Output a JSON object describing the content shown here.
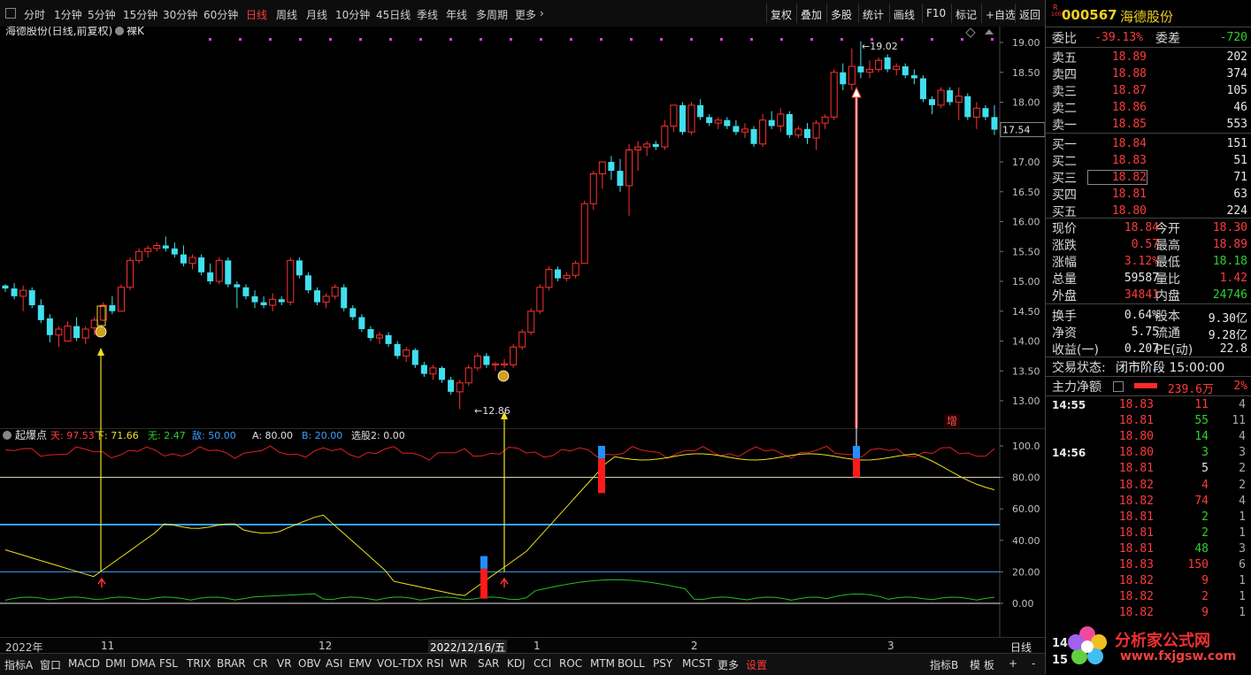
{
  "toolbar": {
    "periods": [
      "分时",
      "1分钟",
      "5分钟",
      "15分钟",
      "30分钟",
      "60分钟",
      "日线",
      "周线",
      "月线",
      "10分钟",
      "45日线",
      "季线",
      "年线",
      "多周期",
      "更多"
    ],
    "active_period": "日线",
    "buttons": [
      "复权",
      "叠加",
      "多股",
      "统计",
      "画线",
      "F10",
      "标记",
      "+自选",
      "返回"
    ]
  },
  "chart": {
    "title": "海德股份(日线,前复权)",
    "mode": "裸K",
    "price_ticks": [
      "19.00",
      "18.50",
      "18.00",
      "17.50",
      "17.00",
      "16.50",
      "16.00",
      "15.50",
      "15.00",
      "14.50",
      "14.00",
      "13.50",
      "13.00"
    ],
    "current_price_tag": "17.54",
    "high_label": "19.02",
    "low_label": "12.86",
    "zeng_label": "增"
  },
  "indicator": {
    "name": "起爆点",
    "items": [
      {
        "label": "天: 97.53",
        "color": "#ff3b3b"
      },
      {
        "label": "下: 71.66",
        "color": "#f0e020"
      },
      {
        "label": "无: 2.47",
        "color": "#2ed12e"
      },
      {
        "label": "敌: 50.00",
        "color": "#3aa0ff"
      },
      {
        "label": "A: 80.00",
        "color": "#e0e0e0"
      },
      {
        "label": "B: 20.00",
        "color": "#3aa0ff"
      },
      {
        "label": "选股2: 0.00",
        "color": "#e0e0e0"
      }
    ],
    "ticks": [
      "100.0",
      "80.00",
      "60.00",
      "40.00",
      "20.00",
      "0.00"
    ]
  },
  "date_axis": {
    "labels": [
      "2022年",
      "11",
      "12",
      "2022/12/16/五",
      "1",
      "2",
      "3"
    ],
    "right_label": "日线"
  },
  "bottom_tabs": [
    "指标A",
    "窗口",
    "MACD",
    "DMI",
    "DMA",
    "FSL",
    "TRIX",
    "BRAR",
    "CR",
    "VR",
    "OBV",
    "ASI",
    "EMV",
    "VOL-TDX",
    "RSI",
    "WR",
    "SAR",
    "KDJ",
    "CCI",
    "ROC",
    "MTM",
    "BOLL",
    "PSY",
    "MCST",
    "更多",
    "设置"
  ],
  "bottom_right": [
    "指标B",
    "模 板",
    "+",
    "-"
  ],
  "stock": {
    "code": "000567",
    "name": "海德股份",
    "badge": "R",
    "weibi_label": "委比",
    "weibi": "-39.13%",
    "weicha_label": "委差",
    "weicha": "-720",
    "sell": [
      {
        "label": "卖五",
        "price": "18.89",
        "vol": "202"
      },
      {
        "label": "卖四",
        "price": "18.88",
        "vol": "374"
      },
      {
        "label": "卖三",
        "price": "18.87",
        "vol": "105"
      },
      {
        "label": "卖二",
        "price": "18.86",
        "vol": "46"
      },
      {
        "label": "卖一",
        "price": "18.85",
        "vol": "553"
      }
    ],
    "buy": [
      {
        "label": "买一",
        "price": "18.84",
        "vol": "151"
      },
      {
        "label": "买二",
        "price": "18.83",
        "vol": "51"
      },
      {
        "label": "买三",
        "price": "18.82",
        "vol": "71"
      },
      {
        "label": "买四",
        "price": "18.81",
        "vol": "63"
      },
      {
        "label": "买五",
        "price": "18.80",
        "vol": "224"
      }
    ],
    "stats": [
      {
        "l1": "现价",
        "v1": "18.84",
        "c1": "red",
        "l2": "今开",
        "v2": "18.30",
        "c2": "red"
      },
      {
        "l1": "涨跌",
        "v1": "0.57",
        "c1": "red",
        "l2": "最高",
        "v2": "18.89",
        "c2": "red"
      },
      {
        "l1": "涨幅",
        "v1": "3.12%",
        "c1": "red",
        "l2": "最低",
        "v2": "18.18",
        "c2": "green"
      },
      {
        "l1": "总量",
        "v1": "59587",
        "c1": "white",
        "l2": "量比",
        "v2": "1.42",
        "c2": "red"
      },
      {
        "l1": "外盘",
        "v1": "34841",
        "c1": "red",
        "l2": "内盘",
        "v2": "24746",
        "c2": "green"
      },
      {
        "l1": "换手",
        "v1": "0.64%",
        "c1": "white",
        "l2": "股本",
        "v2": "9.30亿",
        "c2": "white"
      },
      {
        "l1": "净资",
        "v1": "5.75",
        "c1": "white",
        "l2": "流通",
        "v2": "9.28亿",
        "c2": "white"
      },
      {
        "l1": "收益(一)",
        "v1": "0.207",
        "c1": "white",
        "l2": "PE(动)",
        "v2": "22.8",
        "c2": "white"
      }
    ],
    "trade_status_label": "交易状态:",
    "trade_status": "闭市阶段 15:00:00",
    "main_net_label": "主力净额",
    "main_net": "239.6万",
    "main_net_pct": "2%",
    "ticks": [
      {
        "time": "14:55",
        "price": "18.83",
        "vol": "11",
        "n": "4"
      },
      {
        "time": "",
        "price": "18.81",
        "vol": "55",
        "n": "11"
      },
      {
        "time": "",
        "price": "18.80",
        "vol": "14",
        "n": "4"
      },
      {
        "time": "14:56",
        "price": "18.80",
        "vol": "3",
        "n": "3"
      },
      {
        "time": "",
        "price": "18.81",
        "vol": "5",
        "n": "2"
      },
      {
        "time": "",
        "price": "18.82",
        "vol": "4",
        "n": "2"
      },
      {
        "time": "",
        "price": "18.82",
        "vol": "74",
        "n": "4"
      },
      {
        "time": "",
        "price": "18.81",
        "vol": "2",
        "n": "1"
      },
      {
        "time": "",
        "price": "18.81",
        "vol": "2",
        "n": "1"
      },
      {
        "time": "",
        "price": "18.81",
        "vol": "48",
        "n": "3"
      },
      {
        "time": "",
        "price": "18.83",
        "vol": "150",
        "n": "6"
      },
      {
        "time": "",
        "price": "18.82",
        "vol": "9",
        "n": "1"
      },
      {
        "time": "",
        "price": "18.82",
        "vol": "2",
        "n": "1"
      },
      {
        "time": "",
        "price": "18.82",
        "vol": "9",
        "n": "1"
      }
    ],
    "tick_vol_colors": [
      "red",
      "green",
      "green",
      "green",
      "white",
      "red",
      "red",
      "green",
      "green",
      "green",
      "red",
      "red",
      "red",
      "red"
    ],
    "bottom_times": [
      "14",
      "15"
    ]
  },
  "watermark": {
    "text": "分析家公式网",
    "url": "www.fxjgsw.com"
  }
}
